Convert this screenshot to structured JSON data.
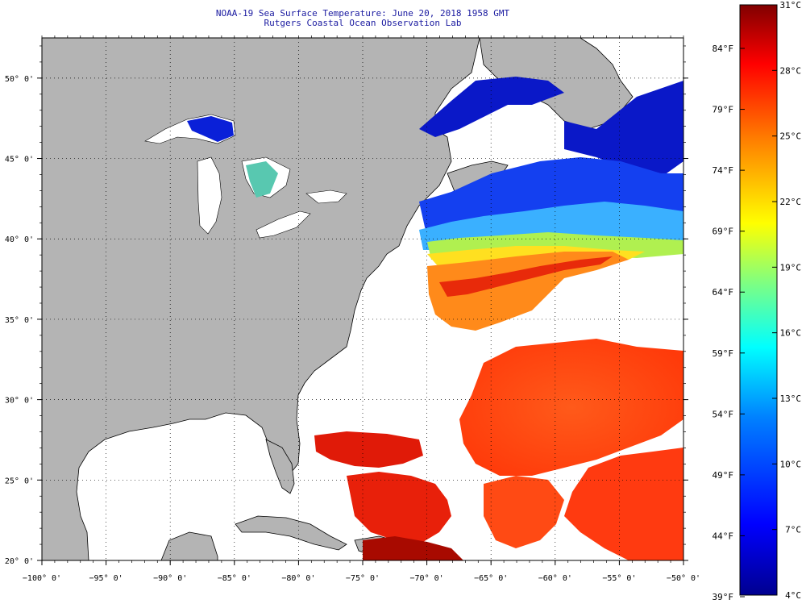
{
  "header": {
    "title_line1": "NOAA-19 Sea Surface Temperature:  June 20, 2018 1958 GMT",
    "title_line2": "Rutgers Coastal Ocean Observation Lab"
  },
  "map": {
    "lon_range": [
      -100,
      -50
    ],
    "lat_range": [
      20,
      52.5
    ],
    "lon_ticks": [
      -100,
      -95,
      -90,
      -85,
      -80,
      -75,
      -70,
      -65,
      -60,
      -55,
      -50
    ],
    "lat_ticks": [
      20,
      25,
      30,
      35,
      40,
      45,
      50
    ],
    "lon_labels": [
      "−100° 0'",
      "−95° 0'",
      "−90° 0'",
      "−85° 0'",
      "−80° 0'",
      "−75° 0'",
      "−70° 0'",
      "−65° 0'",
      "−60° 0'",
      "−55° 0'",
      "−50° 0'"
    ],
    "lat_labels": [
      "20° 0'",
      "25° 0'",
      "30° 0'",
      "35° 0'",
      "40° 0'",
      "45° 0'",
      "50° 0'"
    ],
    "land_color": "#b4b4b4",
    "ocean_color": "#ffffff"
  },
  "colorbar": {
    "celsius_labels": [
      "31°C",
      "28°C",
      "25°C",
      "22°C",
      "19°C",
      "16°C",
      "13°C",
      "10°C",
      "7°C",
      "4°C"
    ],
    "fahrenheit_labels": [
      "84°F",
      "79°F",
      "74°F",
      "69°F",
      "64°F",
      "59°F",
      "54°F",
      "49°F",
      "44°F",
      "39°F"
    ],
    "range_celsius": [
      4,
      31
    ],
    "colors": [
      "#00008f",
      "#0000ff",
      "#0080ff",
      "#00ffff",
      "#80ff80",
      "#ffff00",
      "#ff8000",
      "#ff0000",
      "#800000"
    ]
  }
}
